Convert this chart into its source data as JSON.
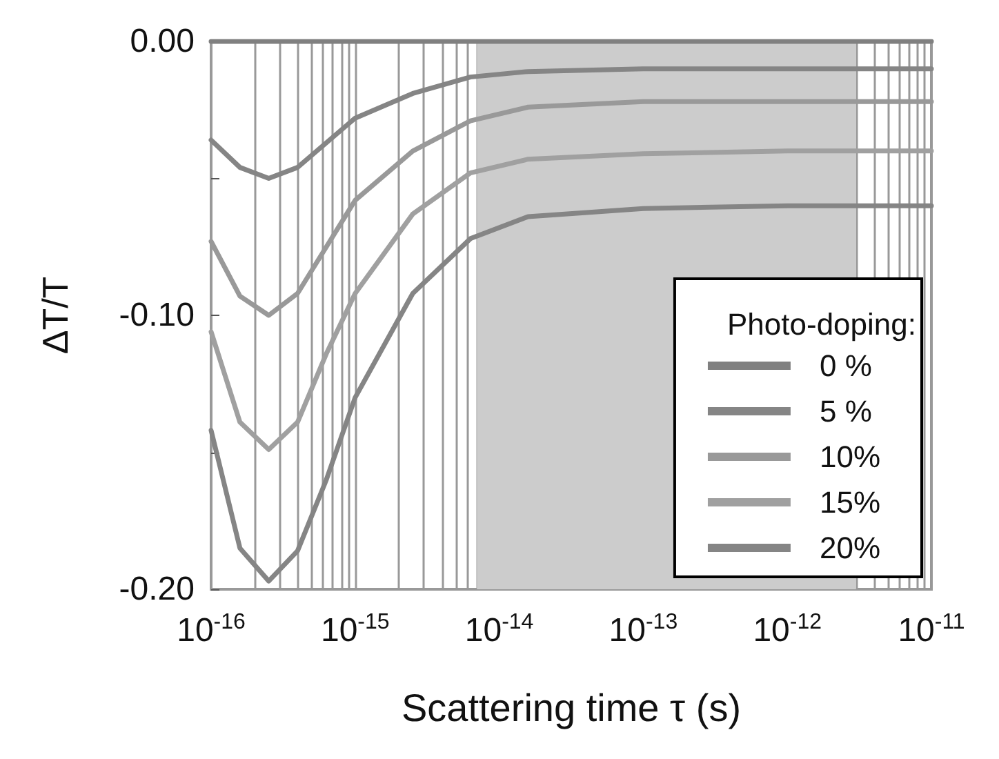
{
  "chart_data": {
    "type": "line",
    "xlabel": "Scattering time τ (s)",
    "ylabel": "ΔT/T",
    "legend_title": "Photo-doping:",
    "legend": "bottom right",
    "log": "x",
    "grid": "x",
    "marker": "none",
    "line_style": "solid",
    "x": [
      1e-16,
      1.585e-16,
      2.512e-16,
      3.981e-16,
      6.31e-16,
      1e-15,
      2.512e-15,
      6.31e-15,
      1.585e-14,
      1e-13,
      1e-12,
      1e-11
    ],
    "xlim": [
      1e-16,
      1e-11
    ],
    "xticks": [
      {
        "value": 1e-16,
        "label": "10$^{-16}$"
      },
      {
        "value": 1e-15,
        "label": "10$^{-15}$"
      },
      {
        "value": 1e-14,
        "label": "10$^{-14}$"
      },
      {
        "value": 1e-13,
        "label": "10$^{-13}$"
      },
      {
        "value": 1e-12,
        "label": "10$^{-12}$"
      },
      {
        "value": 1e-11,
        "label": "10$^{-11}$"
      }
    ],
    "ylim": [
      -0.2,
      0
    ],
    "yticks": [
      {
        "value": 0,
        "label": "0.00"
      },
      {
        "value": -0.05,
        "label": null
      },
      {
        "value": -0.1,
        "label": "-0.10"
      },
      {
        "value": -0.15,
        "label": null
      },
      {
        "value": -0.2,
        "label": "-0.20"
      }
    ],
    "bands": [
      {
        "axis": "x",
        "from": 7e-15,
        "to": 3e-12,
        "color": "#cccccc"
      }
    ],
    "series": [
      {
        "name": "0 %",
        "color": "#808080",
        "values": [
          0,
          0,
          0,
          0,
          0,
          0,
          0,
          0,
          0,
          0,
          0,
          0
        ]
      },
      {
        "name": "5 %",
        "color": "#858585",
        "values": [
          -0.036,
          -0.046,
          -0.05,
          -0.046,
          -0.037,
          -0.028,
          -0.019,
          -0.013,
          -0.011,
          -0.01,
          -0.01,
          -0.01
        ]
      },
      {
        "name": "10%",
        "color": "#999999",
        "values": [
          -0.073,
          -0.093,
          -0.1,
          -0.092,
          -0.075,
          -0.058,
          -0.04,
          -0.029,
          -0.024,
          -0.022,
          -0.022,
          -0.022
        ]
      },
      {
        "name": "15%",
        "color": "#a0a0a0",
        "values": [
          -0.106,
          -0.139,
          -0.149,
          -0.139,
          -0.114,
          -0.092,
          -0.063,
          -0.048,
          -0.043,
          -0.041,
          -0.04,
          -0.04
        ]
      },
      {
        "name": "20%",
        "color": "#858585",
        "values": [
          -0.142,
          -0.185,
          -0.197,
          -0.186,
          -0.16,
          -0.13,
          -0.092,
          -0.072,
          -0.064,
          -0.061,
          -0.06,
          -0.06
        ]
      }
    ]
  }
}
